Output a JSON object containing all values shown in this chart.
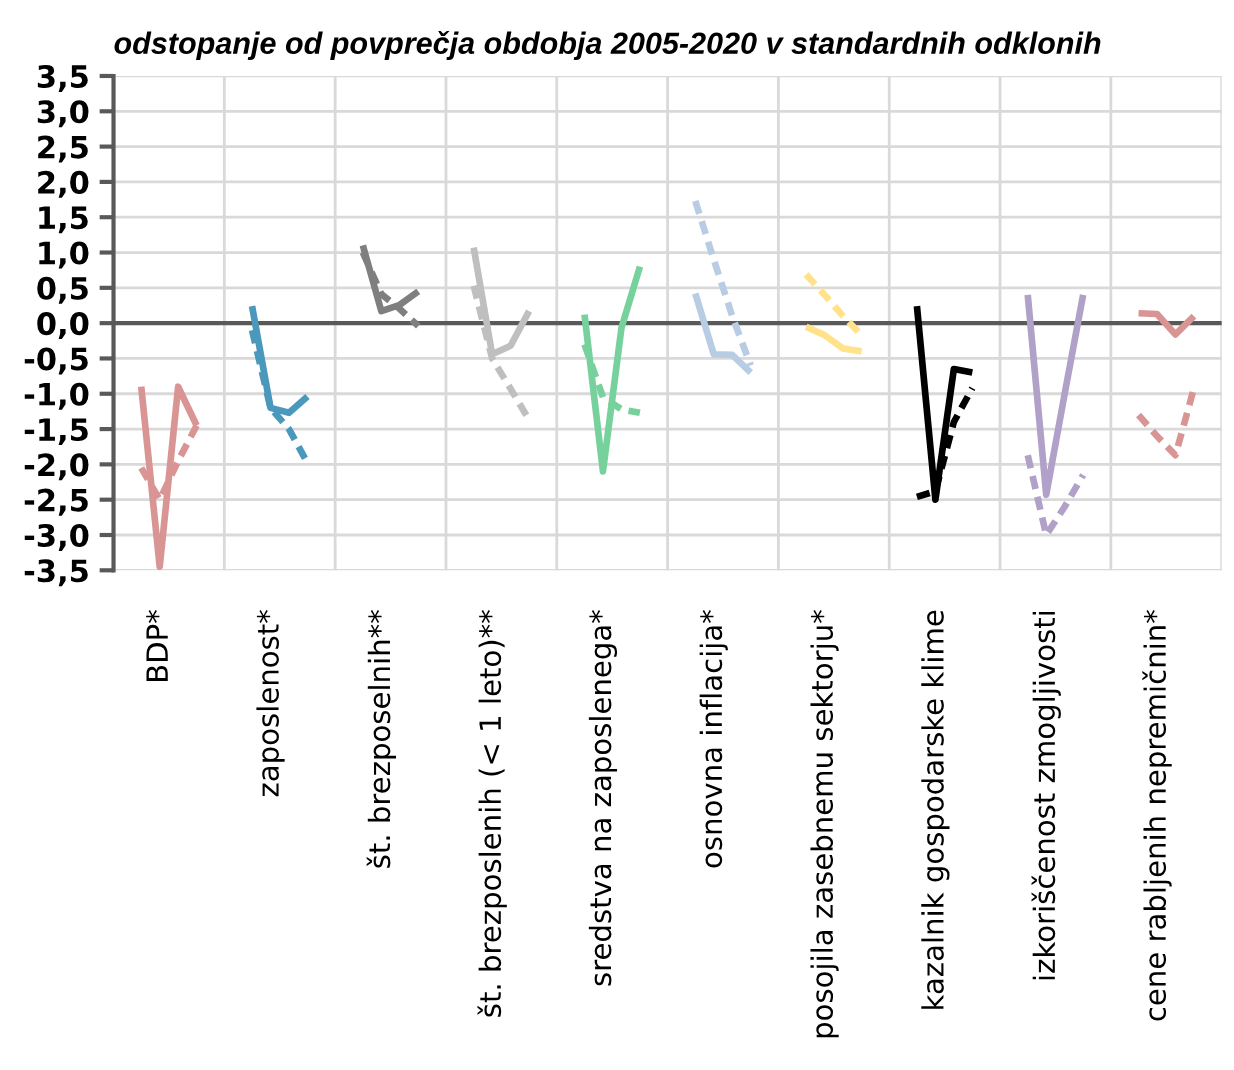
{
  "chart_data": {
    "type": "line",
    "title": "odstopanje od povprečja obdobja 2005-2020 v standardnih odklonih",
    "categories": [
      null,
      null,
      "BDP*",
      null,
      null,
      null,
      null,
      null,
      "zaposlenost*",
      null,
      null,
      null,
      null,
      null,
      "št. brezposelnih**",
      null,
      null,
      null,
      null,
      null,
      "št. brezposlenih (< 1 leto)**",
      null,
      null,
      null,
      null,
      null,
      "sredstva na zaposlenega*",
      null,
      null,
      null,
      null,
      null,
      "osnovna inflacija*",
      null,
      null,
      null,
      null,
      null,
      "posojila zasebnemu sektorju*",
      null,
      null,
      null,
      null,
      null,
      "kazalnik gospodarske klime",
      null,
      null,
      null,
      null,
      null,
      "izkoriščenost zmogljivosti",
      null,
      null,
      null,
      null,
      null,
      "cene rabljenih nepremičnin*",
      null,
      null,
      null
    ],
    "series": [
      {
        "color": "#d99594",
        "line_style": "solid",
        "values": [
          null,
          -0.9,
          -3.45,
          -0.9,
          -1.45,
          null,
          null,
          null,
          null,
          null,
          null,
          null,
          null,
          null,
          null,
          null,
          null,
          null,
          null,
          null,
          null,
          null,
          null,
          null,
          null,
          null,
          null,
          null,
          null,
          null,
          null,
          null,
          null,
          null,
          null,
          null,
          null,
          null,
          null,
          null,
          null,
          null,
          null,
          null,
          null,
          null,
          null,
          null,
          null,
          null,
          null,
          null,
          null,
          null,
          null,
          null,
          null,
          null,
          null,
          null
        ]
      },
      {
        "color": "#d99594",
        "line_style": "dashed",
        "values": [
          null,
          -2.05,
          -2.5,
          -1.95,
          -1.45,
          null,
          null,
          null,
          null,
          null,
          null,
          null,
          null,
          null,
          null,
          null,
          null,
          null,
          null,
          null,
          null,
          null,
          null,
          null,
          null,
          null,
          null,
          null,
          null,
          null,
          null,
          null,
          null,
          null,
          null,
          null,
          null,
          null,
          null,
          null,
          null,
          null,
          null,
          null,
          null,
          null,
          null,
          null,
          null,
          null,
          null,
          null,
          null,
          null,
          null,
          null,
          null,
          null,
          null,
          null
        ]
      },
      {
        "color": "#4a98bb",
        "line_style": "solid",
        "values": [
          null,
          null,
          null,
          null,
          null,
          null,
          null,
          0.24,
          -1.2,
          -1.27,
          -1.04,
          null,
          null,
          null,
          null,
          null,
          null,
          null,
          null,
          null,
          null,
          null,
          null,
          null,
          null,
          null,
          null,
          null,
          null,
          null,
          null,
          null,
          null,
          null,
          null,
          null,
          null,
          null,
          null,
          null,
          null,
          null,
          null,
          null,
          null,
          null,
          null,
          null,
          null,
          null,
          null,
          null,
          null,
          null,
          null,
          null,
          null,
          null,
          null,
          null
        ]
      },
      {
        "color": "#4a98bb",
        "line_style": "dashed",
        "values": [
          null,
          null,
          null,
          null,
          null,
          null,
          null,
          -0.1,
          -1.2,
          -1.5,
          -1.98,
          null,
          null,
          null,
          null,
          null,
          null,
          null,
          null,
          null,
          null,
          null,
          null,
          null,
          null,
          null,
          null,
          null,
          null,
          null,
          null,
          null,
          null,
          null,
          null,
          null,
          null,
          null,
          null,
          null,
          null,
          null,
          null,
          null,
          null,
          null,
          null,
          null,
          null,
          null,
          null,
          null,
          null,
          null,
          null,
          null,
          null,
          null,
          null,
          null
        ]
      },
      {
        "color": "#7f7f7f",
        "line_style": "solid",
        "values": [
          null,
          null,
          null,
          null,
          null,
          null,
          null,
          null,
          null,
          null,
          null,
          null,
          null,
          1.1,
          0.17,
          0.26,
          0.45,
          null,
          null,
          null,
          null,
          null,
          null,
          null,
          null,
          null,
          null,
          null,
          null,
          null,
          null,
          null,
          null,
          null,
          null,
          null,
          null,
          null,
          null,
          null,
          null,
          null,
          null,
          null,
          null,
          null,
          null,
          null,
          null,
          null,
          null,
          null,
          null,
          null,
          null,
          null,
          null,
          null,
          null,
          null
        ]
      },
      {
        "color": "#7f7f7f",
        "line_style": "dashed",
        "values": [
          null,
          null,
          null,
          null,
          null,
          null,
          null,
          null,
          null,
          null,
          null,
          null,
          null,
          1.0,
          0.41,
          0.2,
          -0.04,
          null,
          null,
          null,
          null,
          null,
          null,
          null,
          null,
          null,
          null,
          null,
          null,
          null,
          null,
          null,
          null,
          null,
          null,
          null,
          null,
          null,
          null,
          null,
          null,
          null,
          null,
          null,
          null,
          null,
          null,
          null,
          null,
          null,
          null,
          null,
          null,
          null,
          null,
          null,
          null,
          null,
          null,
          null
        ]
      },
      {
        "color": "#bfbfbf",
        "line_style": "solid",
        "values": [
          null,
          null,
          null,
          null,
          null,
          null,
          null,
          null,
          null,
          null,
          null,
          null,
          null,
          null,
          null,
          null,
          null,
          null,
          null,
          1.07,
          -0.44,
          -0.32,
          0.17,
          null,
          null,
          null,
          null,
          null,
          null,
          null,
          null,
          null,
          null,
          null,
          null,
          null,
          null,
          null,
          null,
          null,
          null,
          null,
          null,
          null,
          null,
          null,
          null,
          null,
          null,
          null,
          null,
          null,
          null,
          null,
          null,
          null,
          null,
          null,
          null,
          null
        ]
      },
      {
        "color": "#bfbfbf",
        "line_style": "dashed",
        "values": [
          null,
          null,
          null,
          null,
          null,
          null,
          null,
          null,
          null,
          null,
          null,
          null,
          null,
          null,
          null,
          null,
          null,
          null,
          null,
          0.53,
          -0.5,
          -0.93,
          -1.37,
          null,
          null,
          null,
          null,
          null,
          null,
          null,
          null,
          null,
          null,
          null,
          null,
          null,
          null,
          null,
          null,
          null,
          null,
          null,
          null,
          null,
          null,
          null,
          null,
          null,
          null,
          null,
          null,
          null,
          null,
          null,
          null,
          null,
          null,
          null,
          null,
          null
        ]
      },
      {
        "color": "#77d19c",
        "line_style": "solid",
        "values": [
          null,
          null,
          null,
          null,
          null,
          null,
          null,
          null,
          null,
          null,
          null,
          null,
          null,
          null,
          null,
          null,
          null,
          null,
          null,
          null,
          null,
          null,
          null,
          null,
          null,
          0.12,
          -2.1,
          -0.07,
          0.8,
          null,
          null,
          null,
          null,
          null,
          null,
          null,
          null,
          null,
          null,
          null,
          null,
          null,
          null,
          null,
          null,
          null,
          null,
          null,
          null,
          null,
          null,
          null,
          null,
          null,
          null,
          null,
          null,
          null,
          null,
          null
        ]
      },
      {
        "color": "#77d19c",
        "line_style": "dashed",
        "values": [
          null,
          null,
          null,
          null,
          null,
          null,
          null,
          null,
          null,
          null,
          null,
          null,
          null,
          null,
          null,
          null,
          null,
          null,
          null,
          null,
          null,
          null,
          null,
          null,
          null,
          -0.3,
          -1.05,
          -1.22,
          -1.27,
          null,
          null,
          null,
          null,
          null,
          null,
          null,
          null,
          null,
          null,
          null,
          null,
          null,
          null,
          null,
          null,
          null,
          null,
          null,
          null,
          null,
          null,
          null,
          null,
          null,
          null,
          null,
          null,
          null,
          null,
          null
        ]
      },
      {
        "color": "#b8cce4",
        "line_style": "solid",
        "values": [
          null,
          null,
          null,
          null,
          null,
          null,
          null,
          null,
          null,
          null,
          null,
          null,
          null,
          null,
          null,
          null,
          null,
          null,
          null,
          null,
          null,
          null,
          null,
          null,
          null,
          null,
          null,
          null,
          null,
          null,
          null,
          0.42,
          -0.44,
          -0.45,
          -0.7,
          null,
          null,
          null,
          null,
          null,
          null,
          null,
          null,
          null,
          null,
          null,
          null,
          null,
          null,
          null,
          null,
          null,
          null,
          null,
          null,
          null,
          null,
          null,
          null,
          null
        ]
      },
      {
        "color": "#b8cce4",
        "line_style": "dashed",
        "values": [
          null,
          null,
          null,
          null,
          null,
          null,
          null,
          null,
          null,
          null,
          null,
          null,
          null,
          null,
          null,
          null,
          null,
          null,
          null,
          null,
          null,
          null,
          null,
          null,
          null,
          null,
          null,
          null,
          null,
          null,
          null,
          1.73,
          0.9,
          0.1,
          -0.6,
          null,
          null,
          null,
          null,
          null,
          null,
          null,
          null,
          null,
          null,
          null,
          null,
          null,
          null,
          null,
          null,
          null,
          null,
          null,
          null,
          null,
          null,
          null,
          null,
          null
        ]
      },
      {
        "color": "#ffe28a",
        "line_style": "solid",
        "values": [
          null,
          null,
          null,
          null,
          null,
          null,
          null,
          null,
          null,
          null,
          null,
          null,
          null,
          null,
          null,
          null,
          null,
          null,
          null,
          null,
          null,
          null,
          null,
          null,
          null,
          null,
          null,
          null,
          null,
          null,
          null,
          null,
          null,
          null,
          null,
          null,
          null,
          -0.05,
          -0.17,
          -0.36,
          -0.4,
          null,
          null,
          null,
          null,
          null,
          null,
          null,
          null,
          null,
          null,
          null,
          null,
          null,
          null,
          null,
          null,
          null,
          null,
          null
        ]
      },
      {
        "color": "#ffe28a",
        "line_style": "dashed",
        "values": [
          null,
          null,
          null,
          null,
          null,
          null,
          null,
          null,
          null,
          null,
          null,
          null,
          null,
          null,
          null,
          null,
          null,
          null,
          null,
          null,
          null,
          null,
          null,
          null,
          null,
          null,
          null,
          null,
          null,
          null,
          null,
          null,
          null,
          null,
          null,
          null,
          null,
          0.69,
          0.4,
          0.1,
          -0.17,
          null,
          null,
          null,
          null,
          null,
          null,
          null,
          null,
          null,
          null,
          null,
          null,
          null,
          null,
          null,
          null,
          null,
          null,
          null
        ]
      },
      {
        "color": "#000000",
        "line_style": "solid",
        "values": [
          null,
          null,
          null,
          null,
          null,
          null,
          null,
          null,
          null,
          null,
          null,
          null,
          null,
          null,
          null,
          null,
          null,
          null,
          null,
          null,
          null,
          null,
          null,
          null,
          null,
          null,
          null,
          null,
          null,
          null,
          null,
          null,
          null,
          null,
          null,
          null,
          null,
          null,
          null,
          null,
          null,
          null,
          null,
          0.24,
          -2.5,
          -0.65,
          -0.7,
          null,
          null,
          null,
          null,
          null,
          null,
          null,
          null,
          null,
          null,
          null,
          null,
          null
        ]
      },
      {
        "color": "#000000",
        "line_style": "dashed",
        "values": [
          null,
          null,
          null,
          null,
          null,
          null,
          null,
          null,
          null,
          null,
          null,
          null,
          null,
          null,
          null,
          null,
          null,
          null,
          null,
          null,
          null,
          null,
          null,
          null,
          null,
          null,
          null,
          null,
          null,
          null,
          null,
          null,
          null,
          null,
          null,
          null,
          null,
          null,
          null,
          null,
          null,
          null,
          null,
          -2.46,
          -2.38,
          -1.4,
          -0.92,
          null,
          null,
          null,
          null,
          null,
          null,
          null,
          null,
          null,
          null,
          null,
          null,
          null
        ]
      },
      {
        "color": "#b1a0c7",
        "line_style": "solid",
        "values": [
          null,
          null,
          null,
          null,
          null,
          null,
          null,
          null,
          null,
          null,
          null,
          null,
          null,
          null,
          null,
          null,
          null,
          null,
          null,
          null,
          null,
          null,
          null,
          null,
          null,
          null,
          null,
          null,
          null,
          null,
          null,
          null,
          null,
          null,
          null,
          null,
          null,
          null,
          null,
          null,
          null,
          null,
          null,
          null,
          null,
          null,
          null,
          null,
          null,
          0.4,
          -2.43,
          -1.0,
          0.4,
          null,
          null,
          null,
          null,
          null,
          null,
          null
        ]
      },
      {
        "color": "#b1a0c7",
        "line_style": "dashed",
        "values": [
          null,
          null,
          null,
          null,
          null,
          null,
          null,
          null,
          null,
          null,
          null,
          null,
          null,
          null,
          null,
          null,
          null,
          null,
          null,
          null,
          null,
          null,
          null,
          null,
          null,
          null,
          null,
          null,
          null,
          null,
          null,
          null,
          null,
          null,
          null,
          null,
          null,
          null,
          null,
          null,
          null,
          null,
          null,
          null,
          null,
          null,
          null,
          null,
          null,
          -1.87,
          -3.0,
          -2.6,
          -2.15,
          null,
          null,
          null,
          null,
          null,
          null,
          null
        ]
      },
      {
        "color": "#d99594",
        "line_style": "solid",
        "values": [
          null,
          null,
          null,
          null,
          null,
          null,
          null,
          null,
          null,
          null,
          null,
          null,
          null,
          null,
          null,
          null,
          null,
          null,
          null,
          null,
          null,
          null,
          null,
          null,
          null,
          null,
          null,
          null,
          null,
          null,
          null,
          null,
          null,
          null,
          null,
          null,
          null,
          null,
          null,
          null,
          null,
          null,
          null,
          null,
          null,
          null,
          null,
          null,
          null,
          null,
          null,
          null,
          null,
          null,
          null,
          0.14,
          0.13,
          -0.16,
          0.1,
          null
        ]
      },
      {
        "color": "#d99594",
        "line_style": "dashed",
        "values": [
          null,
          null,
          null,
          null,
          null,
          null,
          null,
          null,
          null,
          null,
          null,
          null,
          null,
          null,
          null,
          null,
          null,
          null,
          null,
          null,
          null,
          null,
          null,
          null,
          null,
          null,
          null,
          null,
          null,
          null,
          null,
          null,
          null,
          null,
          null,
          null,
          null,
          null,
          null,
          null,
          null,
          null,
          null,
          null,
          null,
          null,
          null,
          null,
          null,
          null,
          null,
          null,
          null,
          null,
          null,
          -1.3,
          -1.6,
          -1.87,
          -0.92,
          null
        ]
      }
    ],
    "ylim": [
      -3.5,
      3.5
    ],
    "yticks": [
      {
        "value": -3.5,
        "label": "-3,5"
      },
      {
        "value": -3.0,
        "label": "-3,0"
      },
      {
        "value": -2.5,
        "label": "-2,5"
      },
      {
        "value": -2.0,
        "label": "-2,0"
      },
      {
        "value": -1.5,
        "label": "-1,5"
      },
      {
        "value": -1.0,
        "label": "-1,0"
      },
      {
        "value": -0.5,
        "label": "-0,5"
      },
      {
        "value": 0.0,
        "label": "0,0"
      },
      {
        "value": 0.5,
        "label": "0,5"
      },
      {
        "value": 1.0,
        "label": "1,0"
      },
      {
        "value": 1.5,
        "label": "1,5"
      },
      {
        "value": 2.0,
        "label": "2,0"
      },
      {
        "value": 2.5,
        "label": "2,5"
      },
      {
        "value": 3.0,
        "label": "3,0"
      },
      {
        "value": 3.5,
        "label": "3,5"
      }
    ],
    "ref_lines": [
      {
        "axis": "y",
        "value": 0,
        "color": "#595959"
      }
    ],
    "grid": true,
    "legend": false,
    "marker": "none"
  }
}
